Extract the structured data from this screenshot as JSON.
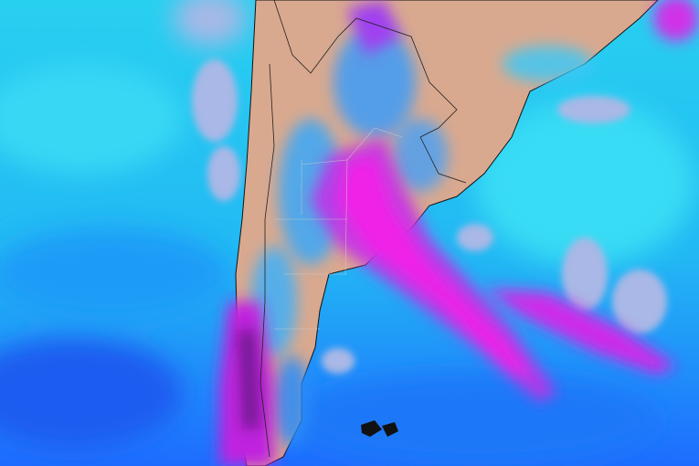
{
  "map": {
    "colors": {
      "ocean_clear": "#2cd4f2",
      "ocean_deep": "#1e78ff",
      "clear_gap": "#a9b8e6",
      "land": "#d9a98f",
      "moisture_high": "#f020e8",
      "moisture_very_high": "#8a1aa8",
      "borders": "#111111",
      "province_borders": "#c8c8c8"
    }
  }
}
